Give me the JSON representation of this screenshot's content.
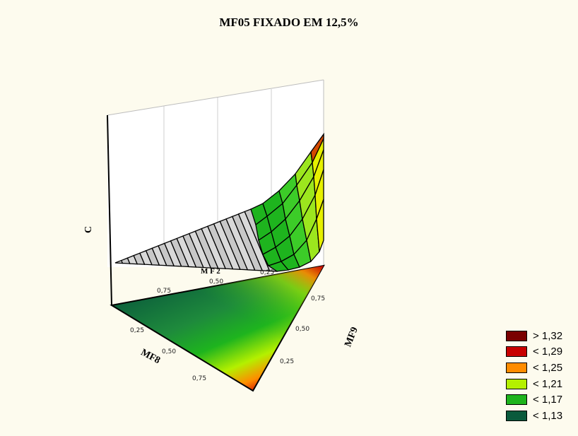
{
  "chart_data": {
    "type": "surface",
    "title": "MF05 FIXADO EM 12,5%",
    "zlabel": "C",
    "axes": [
      {
        "name": "MF2",
        "label": "M F 2",
        "ticks": [
          "0,75",
          "0,50",
          "0,25"
        ]
      },
      {
        "name": "MF8",
        "label": "MF8",
        "ticks": [
          "0,25",
          "0,50",
          "0,75"
        ]
      },
      {
        "name": "MF9",
        "label": "MF9",
        "ticks": [
          "0,25",
          "0,50",
          "0,75"
        ]
      }
    ],
    "legend": {
      "placement": "bottom-right",
      "items": [
        {
          "label": "> 1,32",
          "color": "#7a0000"
        },
        {
          "label": "< 1,29",
          "color": "#c80000"
        },
        {
          "label": "< 1,25",
          "color": "#ff8c00"
        },
        {
          "label": "< 1,21",
          "color": "#b4f000"
        },
        {
          "label": "< 1,17",
          "color": "#1eb41e"
        },
        {
          "label": "< 1,13",
          "color": "#0a5a3c"
        }
      ]
    },
    "surface_range": [
      1.13,
      1.32
    ]
  }
}
